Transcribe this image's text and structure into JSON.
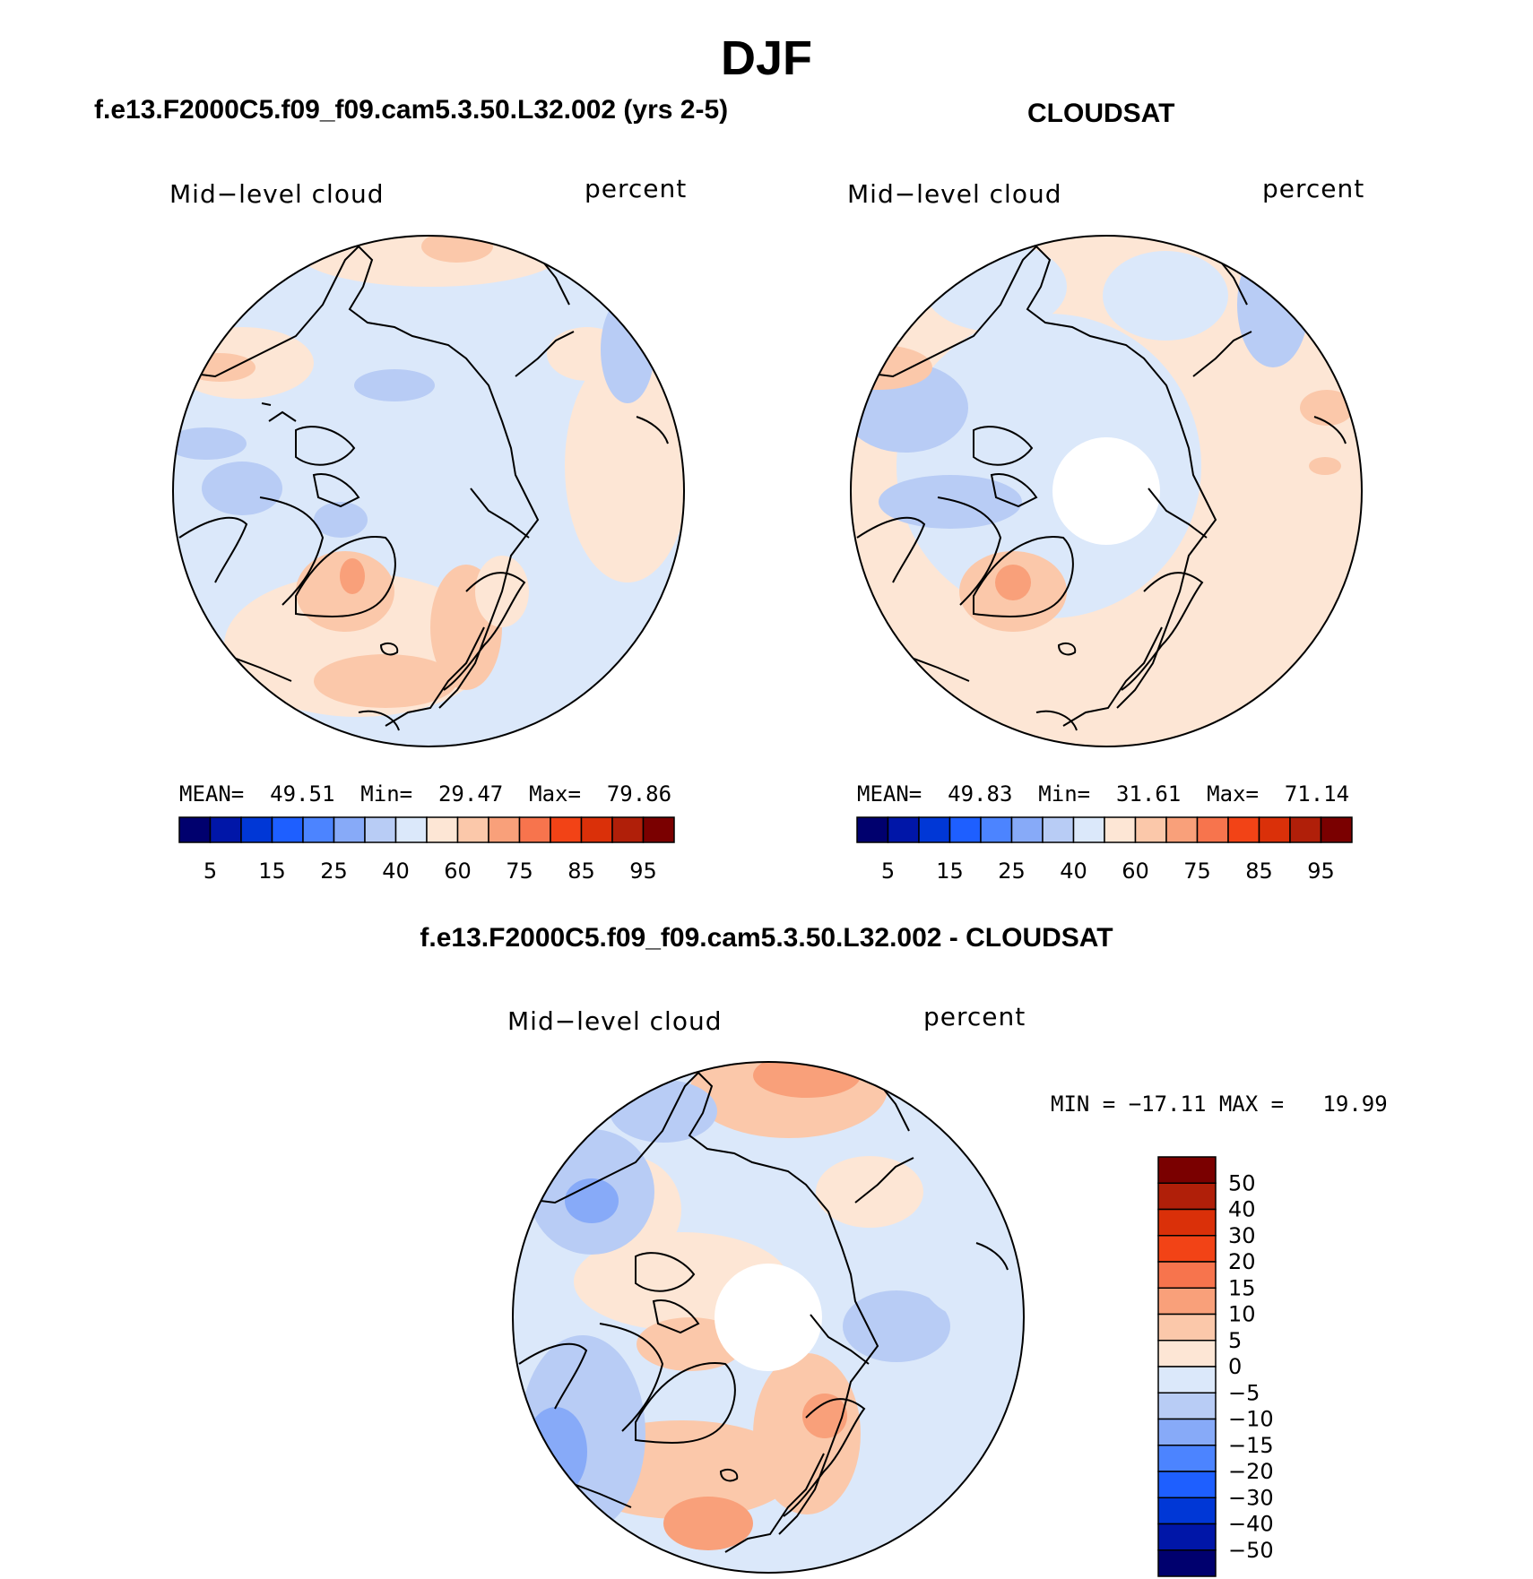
{
  "figure": {
    "season": "DJF",
    "colors": {
      "seq": [
        "#00006e",
        "#0016a8",
        "#0037d6",
        "#1e5fff",
        "#4c84ff",
        "#87aaf8",
        "#b8ccf5",
        "#dbe8fa",
        "#fde6d5",
        "#fbc8aa",
        "#f9a07a",
        "#f7744d",
        "#f24316",
        "#da3009",
        "#b01f09",
        "#7a0000"
      ]
    }
  },
  "panels": {
    "model": {
      "heading": "f.e13.F2000C5.f09_f09.cam5.3.50.L32.002 (yrs 2-5)",
      "variable": "Mid−level cloud",
      "units": "percent",
      "stats": "MEAN=  49.51  Min=  29.47  Max=  79.86"
    },
    "obs": {
      "heading": "CLOUDSAT",
      "variable": "Mid−level cloud",
      "units": "percent",
      "stats": "MEAN=  49.83  Min=  31.61  Max=  71.14"
    },
    "diff": {
      "heading": "f.e13.F2000C5.f09_f09.cam5.3.50.L32.002 - CLOUDSAT",
      "variable": "Mid−level cloud",
      "units": "percent",
      "stats": "MIN = −17.11 MAX =   19.99"
    }
  },
  "colorbar_abs": {
    "labels": [
      "5",
      "15",
      "25",
      "40",
      "60",
      "75",
      "85",
      "95"
    ]
  },
  "colorbar_diff": {
    "labels": [
      "50",
      "40",
      "30",
      "20",
      "15",
      "10",
      "5",
      "0",
      "−5",
      "−10",
      "−15",
      "−20",
      "−30",
      "−40",
      "−50"
    ]
  }
}
